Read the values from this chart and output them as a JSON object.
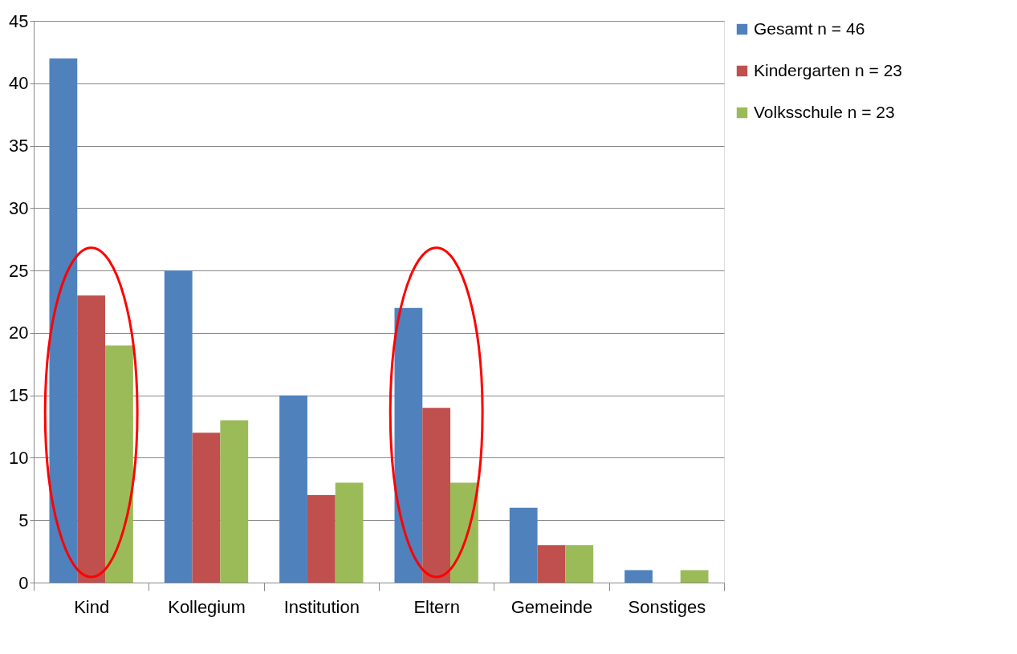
{
  "chart_data": {
    "type": "bar",
    "categories": [
      "Kind",
      "Kollegium",
      "Institution",
      "Eltern",
      "Gemeinde",
      "Sonstiges"
    ],
    "series": [
      {
        "name": "Gesamt n = 46",
        "color": "#4f81bd",
        "values": [
          42,
          25,
          15,
          22,
          6,
          1
        ]
      },
      {
        "name": "Kindergarten n = 23",
        "color": "#c0504d",
        "values": [
          23,
          12,
          7,
          14,
          3,
          0
        ]
      },
      {
        "name": "Volksschule n = 23",
        "color": "#9bbb59",
        "values": [
          19,
          13,
          8,
          8,
          3,
          1
        ]
      }
    ],
    "ylim": [
      0,
      45
    ],
    "yticks": [
      0,
      5,
      10,
      15,
      20,
      25,
      30,
      35,
      40,
      45
    ],
    "grid": "y",
    "legend": "right"
  }
}
